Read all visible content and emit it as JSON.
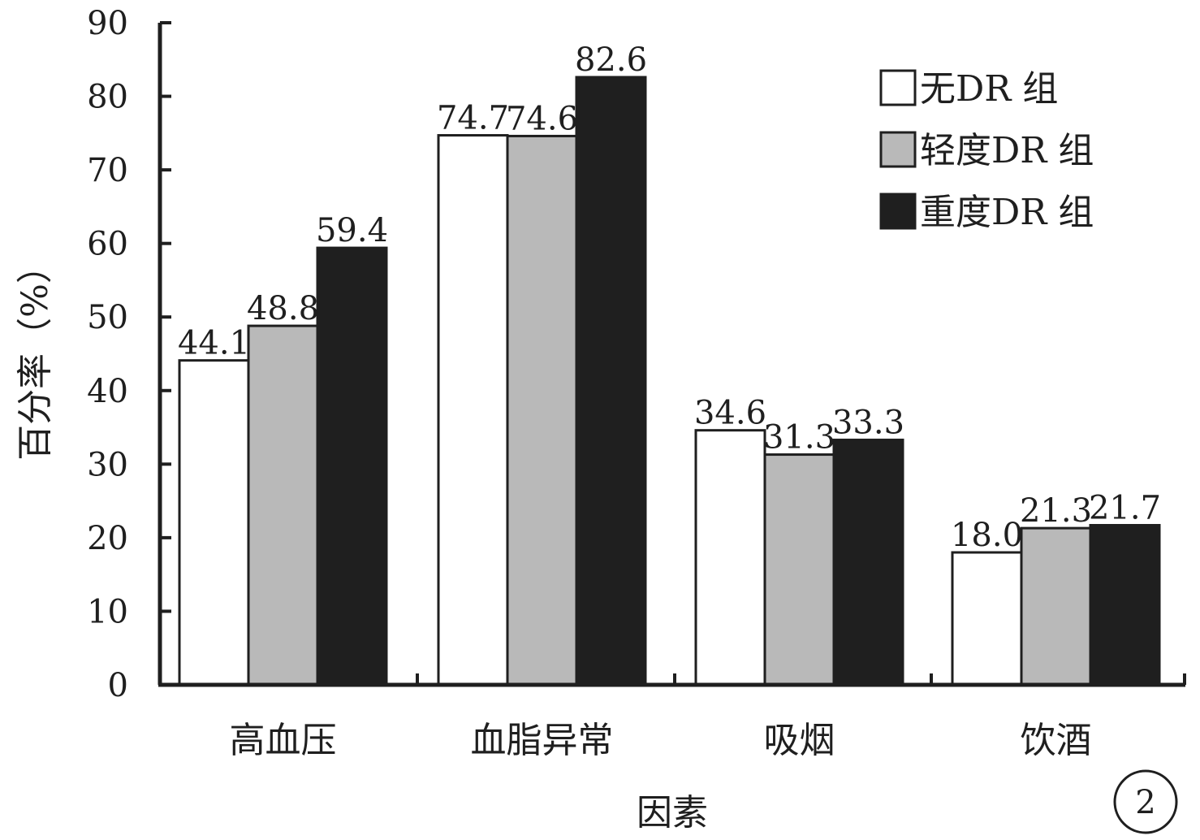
{
  "chart_data": {
    "type": "bar",
    "title": "",
    "xlabel": "因素",
    "ylabel": "百分率（%）",
    "ylim": [
      0,
      90
    ],
    "yticks": [
      0,
      10,
      20,
      30,
      40,
      50,
      60,
      70,
      80,
      90
    ],
    "grid": false,
    "legend_position": "top-right",
    "categories": [
      "高血压",
      "血脂异常",
      "吸烟",
      "饮酒"
    ],
    "series": [
      {
        "name": "无DR 组",
        "color": "#ffffff",
        "values": [
          44.1,
          74.7,
          34.6,
          18.0
        ],
        "labels": [
          "44.1",
          "74.7",
          "34.6",
          "18.0"
        ]
      },
      {
        "name": "轻度DR 组",
        "color": "#b9b9b9",
        "values": [
          48.8,
          74.6,
          31.3,
          21.3
        ],
        "labels": [
          "48.8",
          "74.6",
          "31.3",
          "21.3"
        ]
      },
      {
        "name": "重度DR 组",
        "color": "#1f1f1f",
        "values": [
          59.4,
          82.6,
          33.3,
          21.7
        ],
        "labels": [
          "59.4",
          "82.6",
          "33.3",
          "21.7"
        ]
      }
    ],
    "panel_label": "2"
  }
}
